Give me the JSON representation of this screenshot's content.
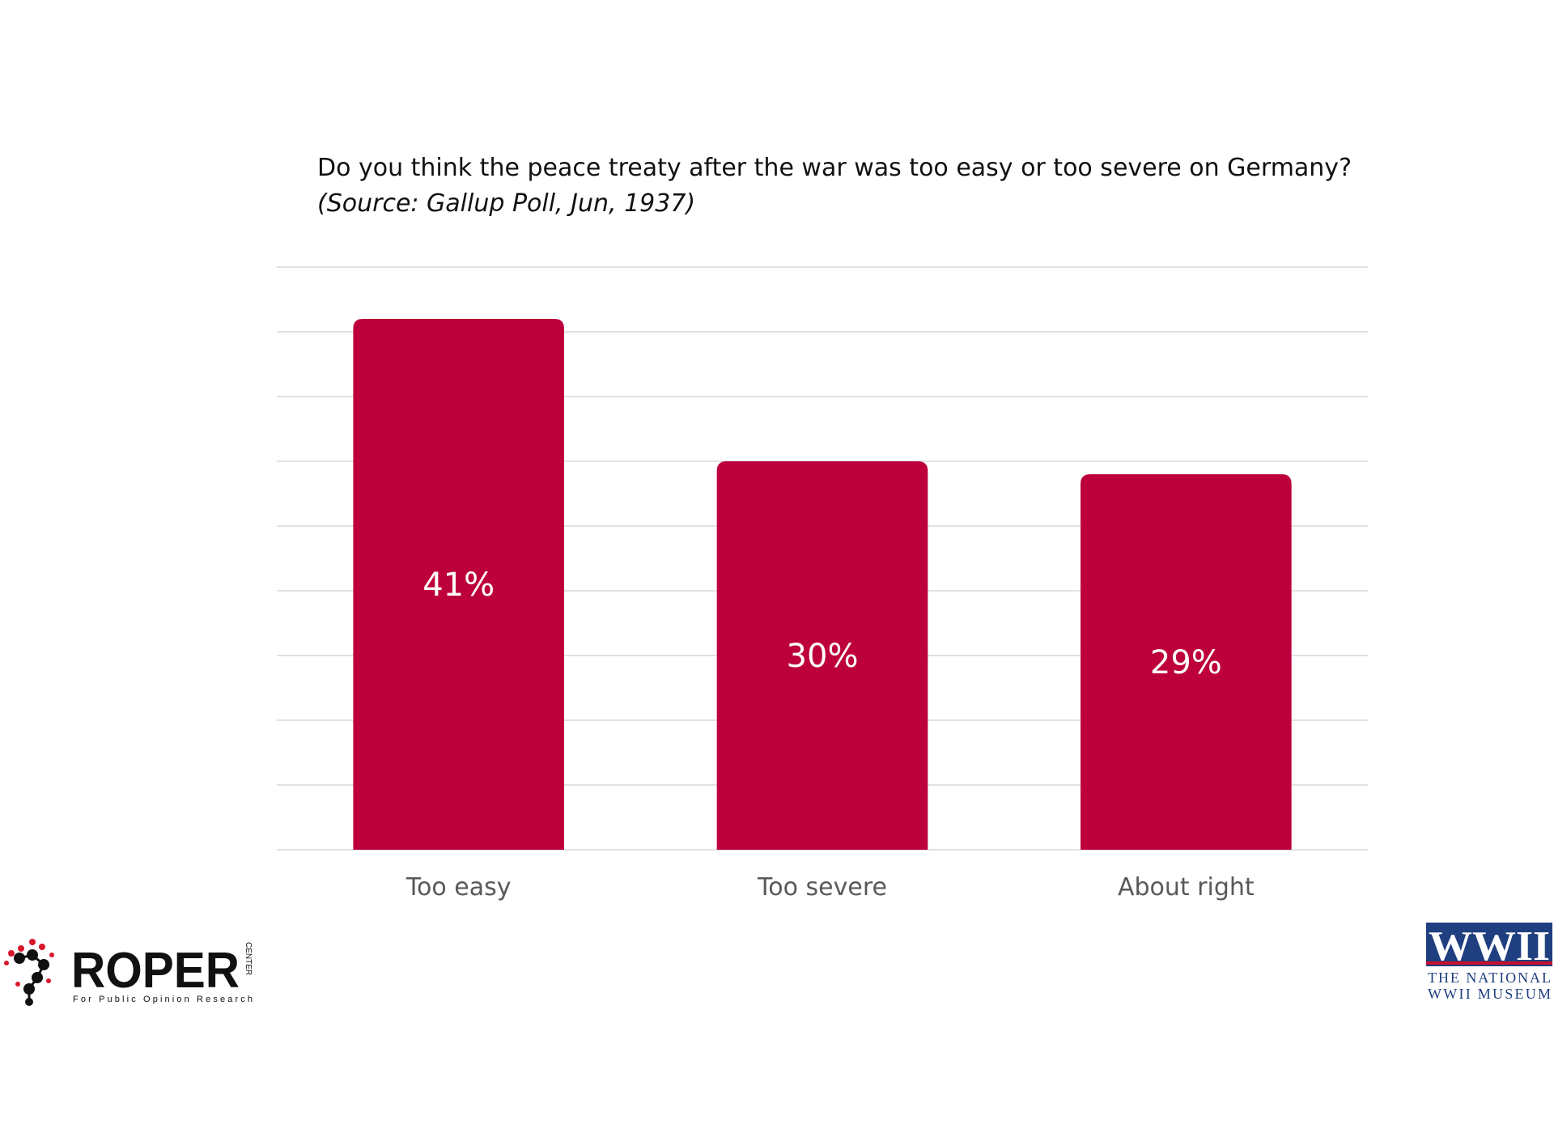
{
  "chart_data": {
    "type": "bar",
    "title": "Do you think the peace treaty after the war was too easy or too severe on Germany?",
    "subtitle": "(Source: Gallup Poll, Jun, 1937)",
    "categories": [
      "Too easy",
      "Too severe",
      "About right"
    ],
    "values": [
      41,
      30,
      29
    ],
    "data_labels": [
      "41%",
      "30%",
      "29%"
    ],
    "ylim": [
      0,
      45
    ],
    "grid": true,
    "bar_color": "#bd003b",
    "xlabel": "",
    "ylabel": ""
  },
  "logos": {
    "roper": {
      "name": "ROPER",
      "tag": "CENTER",
      "tagline": "For Public Opinion Research",
      "dot_color": "#d8162b"
    },
    "wwii": {
      "mark": "WWII",
      "line1": "THE NATIONAL",
      "line2": "WWII MUSEUM",
      "color": "#1f3f80",
      "accent": "#c8102e"
    }
  }
}
